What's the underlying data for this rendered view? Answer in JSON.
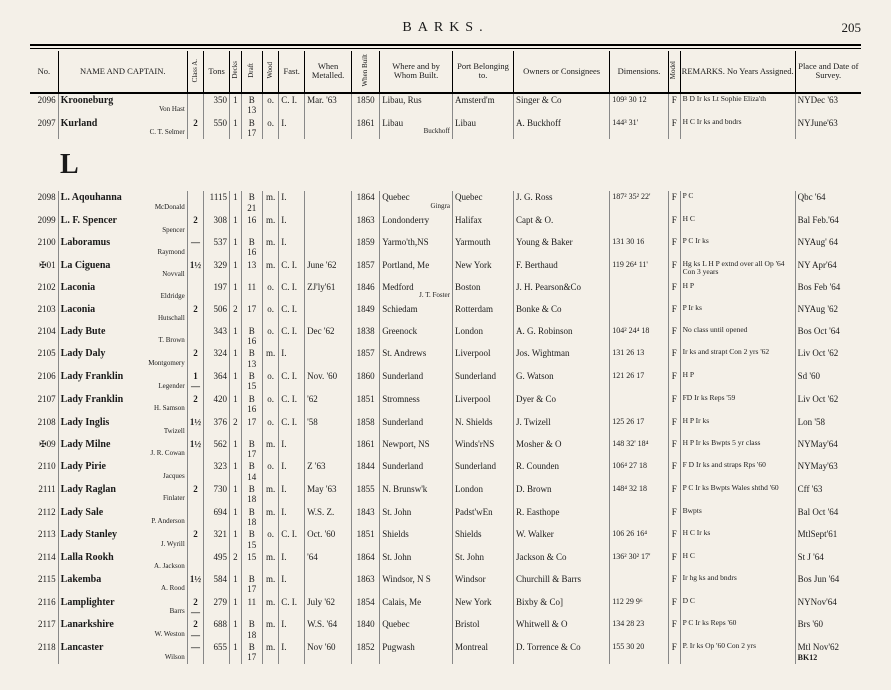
{
  "header": {
    "title": "BARKS.",
    "page_number": "205"
  },
  "columns": [
    "No.",
    "NAME AND CAPTAIN.",
    "Class A.",
    "Tons",
    "Decks",
    "Draft",
    "Wood",
    "Fast.",
    "When Metalled.",
    "When Built",
    "Where and by Whom Built.",
    "Port Belonging to.",
    "Owners or Consignees",
    "Dimensions.",
    "Model",
    "REMARKS. No Years Assigned.",
    "Place and Date of Survey."
  ],
  "section_letter": "L",
  "rows": [
    {
      "no": "2096",
      "name": "Krooneburg",
      "sub": "Von Hast",
      "class": "",
      "tons": "350",
      "decks": "1",
      "draft": "B 13",
      "wood": "o.",
      "fast": "C. I.",
      "metal": "Mar. '63",
      "built": "1850",
      "where": "Libau, Rus",
      "port": "Amsterd'm",
      "owner": "Singer & Co",
      "dim": "109³ 30 12",
      "model": "F",
      "remk": "B D Ir ks Lt Sophie Eliza'th",
      "place": "NYDec '63"
    },
    {
      "no": "2097",
      "name": "Kurland",
      "sub": "C. T. Selmer",
      "class": "2",
      "tons": "550",
      "decks": "1",
      "draft": "B 17",
      "wood": "o.",
      "fast": "I.",
      "metal": "",
      "built": "1861",
      "where": "Libau",
      "where2": "Buckhoff",
      "port": "Libau",
      "owner": "A. Buckhoff",
      "dim": "144³ 31'",
      "model": "F",
      "remk": "H C  Ir ks and bndrs",
      "place": "NYJune'63"
    },
    {
      "no": "2098",
      "name": "L. Aqouhanna",
      "sub": "McDonald",
      "class": "",
      "tons": "1115",
      "decks": "1",
      "draft": "B 21",
      "wood": "m.",
      "fast": "I.",
      "metal": "",
      "built": "1864",
      "where": "Quebec",
      "where2": "Gingra",
      "port": "Quebec",
      "owner": "J. G. Ross",
      "dim": "187² 35² 22'",
      "model": "F",
      "remk": "P C",
      "place": "Qbc    '64"
    },
    {
      "no": "2099",
      "name": "L. F. Spencer",
      "sub": "Spencer",
      "class": "2",
      "tons": "308",
      "decks": "1",
      "draft": "16",
      "wood": "m.",
      "fast": "I.",
      "metal": "",
      "built": "1863",
      "where": "Londonderry",
      "port": "Halifax",
      "owner": "Capt & O.",
      "dim": "",
      "model": "F",
      "remk": "H C",
      "place": "Bal Feb.'64"
    },
    {
      "no": "2100",
      "name": "Laboramus",
      "sub": "Raymond",
      "class": "—",
      "tons": "537",
      "decks": "1",
      "draft": "B 16",
      "wood": "m.",
      "fast": "I.",
      "metal": "",
      "built": "1859",
      "where": "Yarmo'th,NS",
      "port": "Yarmouth",
      "owner": "Young & Baker",
      "dim": "131 30 16",
      "model": "F",
      "remk": "P C  Ir ks",
      "place": "NYAug' 64"
    },
    {
      "no": "✠01",
      "name": "La Ciguena",
      "sub": "Novvall",
      "class": "1½",
      "tons": "329",
      "decks": "1",
      "draft": "13",
      "wood": "m.",
      "fast": "C. I.",
      "metal": "June '62",
      "built": "1857",
      "where": "Portland, Me",
      "port": "New York",
      "owner": "F. Berthaud",
      "dim": "119 26⁴ 11'",
      "model": "F",
      "remk": "Hg ks L H P extnd over all Op '64  Con 3 years",
      "place": "NY Apr'64"
    },
    {
      "no": "2102",
      "name": "Laconia",
      "sub": "Eldridge",
      "class": "",
      "tons": "197",
      "decks": "1",
      "draft": "11",
      "wood": "o.",
      "fast": "C. I.",
      "metal": "ZJ'ly'61",
      "built": "1846",
      "where": "Medford",
      "where2": "J. T. Foster",
      "port": "Boston",
      "owner": "J. H. Pearson&Co",
      "dim": "",
      "model": "F",
      "remk": "H P",
      "place": "Bos Feb '64"
    },
    {
      "no": "2103",
      "name": "Laconia",
      "sub": "Hutschall",
      "class": "2",
      "tons": "506",
      "decks": "2",
      "draft": "17",
      "wood": "o.",
      "fast": "C. I.",
      "metal": "",
      "built": "1849",
      "where": "Schiedam",
      "port": "Rotterdam",
      "owner": "Bonke & Co",
      "dim": "",
      "model": "F",
      "remk": "P  Ir ks",
      "place": "NYAug '62"
    },
    {
      "no": "2104",
      "name": "Lady Bute",
      "sub": "T. Brown",
      "class": "",
      "tons": "343",
      "decks": "1",
      "draft": "B 16",
      "wood": "o.",
      "fast": "C. I.",
      "metal": "Dec '62",
      "built": "1838",
      "where": "Greenock",
      "port": "London",
      "owner": "A. G. Robinson",
      "dim": "104² 24⁴ 18",
      "model": "F",
      "remk": "No class until opened",
      "place": "Bos Oct '64"
    },
    {
      "no": "2105",
      "name": "Lady Daly",
      "sub": "Montgomery",
      "class": "2",
      "tons": "324",
      "decks": "1",
      "draft": "B 13",
      "wood": "m.",
      "fast": "I.",
      "metal": "",
      "built": "1857",
      "where": "St. Andrews",
      "port": "Liverpool",
      "owner": "Jos. Wightman",
      "dim": "131 26 13",
      "model": "F",
      "remk": "Ir ks and strapt Con 2 yrs '62",
      "place": "Liv Oct '62"
    },
    {
      "no": "2106",
      "name": "Lady Franklin",
      "sub": "Legender",
      "class": "1—",
      "tons": "364",
      "decks": "1",
      "draft": "B 15",
      "wood": "o.",
      "fast": "C. I.",
      "metal": "Nov. '60",
      "built": "1860",
      "where": "Sunderland",
      "port": "Sunderland",
      "owner": "G. Watson",
      "dim": "121 26 17",
      "model": "F",
      "remk": "H P",
      "place": "Sd       '60"
    },
    {
      "no": "2107",
      "name": "Lady Franklin",
      "sub": "H. Samson",
      "class": "2",
      "tons": "420",
      "decks": "1",
      "draft": "B 16",
      "wood": "o.",
      "fast": "C. I.",
      "metal": "'62",
      "built": "1851",
      "where": "Stromness",
      "port": "Liverpool",
      "owner": "Dyer & Co",
      "dim": "",
      "model": "F",
      "remk": "FD Ir ks Reps '59",
      "place": "Liv Oct '62"
    },
    {
      "no": "2108",
      "name": "Lady Inglis",
      "sub": "Twizell",
      "class": "1½",
      "tons": "376",
      "decks": "2",
      "draft": "17",
      "wood": "o.",
      "fast": "C. I.",
      "metal": "'58",
      "built": "1858",
      "where": "Sunderland",
      "port": "N. Shields",
      "owner": "J. Twizell",
      "dim": "125 26 17",
      "model": "F",
      "remk": "H P  Ir ks",
      "place": "Lon     '58"
    },
    {
      "no": "✠09",
      "name": "Lady Milne",
      "sub": "J. R. Cowan",
      "class": "1½",
      "tons": "562",
      "decks": "1",
      "draft": "B 17",
      "wood": "m.",
      "fast": "I.",
      "metal": "",
      "built": "1861",
      "where": "Newport, NS",
      "port": "Winds'rNS",
      "owner": "Mosher & O",
      "dim": "148 32' 18⁴",
      "model": "F",
      "remk": "H P  Ir ks Bwpts 5 yr class",
      "place": "NYMay'64"
    },
    {
      "no": "2110",
      "name": "Lady Pirie",
      "sub": "Jacques",
      "class": "",
      "tons": "323",
      "decks": "1",
      "draft": "B 14",
      "wood": "o.",
      "fast": "I.",
      "metal": "Z     '63",
      "built": "1844",
      "where": "Sunderland",
      "port": "Sunderland",
      "owner": "R. Counden",
      "dim": "106⁴ 27 18",
      "model": "F",
      "remk": "F D Ir ks and straps Rps '60",
      "place": "NYMay'63"
    },
    {
      "no": "2111",
      "name": "Lady Raglan",
      "sub": "Finlater",
      "class": "2",
      "tons": "730",
      "decks": "1",
      "draft": "B 18",
      "wood": "m.",
      "fast": "I.",
      "metal": "May '63",
      "built": "1855",
      "where": "N. Brunsw'k",
      "port": "London",
      "owner": "D. Brown",
      "dim": "148⁴ 32 18",
      "model": "F",
      "remk": "P C Ir ks Bwpts Wales shthd '60",
      "place": "Cff      '63"
    },
    {
      "no": "2112",
      "name": "Lady Sale",
      "sub": "P. Anderson",
      "class": "",
      "tons": "694",
      "decks": "1",
      "draft": "B 18",
      "wood": "m.",
      "fast": "I.",
      "metal": "W.S. Z.",
      "built": "1843",
      "where": "St. John",
      "port": "Padst'wEn",
      "owner": "R. Easthope",
      "dim": "",
      "model": "F",
      "remk": "Bwpts",
      "place": "Bal Oct '64"
    },
    {
      "no": "2113",
      "name": "Lady Stanley",
      "sub": "J. Wyrill",
      "class": "2",
      "tons": "321",
      "decks": "1",
      "draft": "B 15",
      "wood": "o.",
      "fast": "C. I.",
      "metal": "Oct. '60",
      "built": "1851",
      "where": "Shields",
      "port": "Shields",
      "owner": "W. Walker",
      "dim": "106 26 16⁴",
      "model": "F",
      "remk": "H C  Ir ks",
      "place": "MtlSept'61"
    },
    {
      "no": "2114",
      "name": "Lalla Rookh",
      "sub": "A. Jackson",
      "class": "",
      "tons": "495",
      "decks": "2",
      "draft": "15",
      "wood": "m.",
      "fast": "I.",
      "metal": "'64",
      "built": "1864",
      "where": "St. John",
      "port": "St. John",
      "owner": "Jackson & Co",
      "dim": "136² 30² 17'",
      "model": "F",
      "remk": "H C",
      "place": "St J     '64"
    },
    {
      "no": "2115",
      "name": "Lakemba",
      "sub": "A. Rood",
      "class": "1½",
      "tons": "584",
      "decks": "1",
      "draft": "B 17",
      "wood": "m.",
      "fast": "I.",
      "metal": "",
      "built": "1863",
      "where": "Windsor, N S",
      "port": "Windsor",
      "owner": "Churchill & Barrs",
      "dim": "",
      "model": "F",
      "remk": "Ir hg ks and bndrs",
      "place": "Bos Jun '64"
    },
    {
      "no": "2116",
      "name": "Lamplighter",
      "sub": "Barrs",
      "class": "2—",
      "tons": "279",
      "decks": "1",
      "draft": "11",
      "wood": "m.",
      "fast": "C. I.",
      "metal": "July '62",
      "built": "1854",
      "where": "Calais, Me",
      "port": "New York",
      "owner": "Bixby & Co]",
      "dim": "112 29  9⁶",
      "model": "F",
      "remk": "D C",
      "place": "NYNov'64"
    },
    {
      "no": "2117",
      "name": "Lanarkshire",
      "sub": "W. Weston",
      "class": "2—",
      "tons": "688",
      "decks": "1",
      "draft": "B 18",
      "wood": "m.",
      "fast": "I.",
      "metal": "W.S. '64",
      "built": "1840",
      "where": "Quebec",
      "port": "Bristol",
      "owner": "Whitwell & O",
      "dim": "134 28 23",
      "model": "F",
      "remk": "P C  Ir ks  Reps '60",
      "place": "Brs      '60"
    },
    {
      "no": "2118",
      "name": "Lancaster",
      "sub": "Wilson",
      "class": "—",
      "tons": "655",
      "decks": "1",
      "draft": "B 17",
      "wood": "m.",
      "fast": "I.",
      "metal": "Nov '60",
      "built": "1852",
      "where": "Pugwash",
      "port": "Montreal",
      "owner": "D. Torrence & Co",
      "dim": "155 30 20",
      "model": "F",
      "remk": "P. Ir ks Op '60  Con 2 yrs",
      "place": "Mtl Nov'62",
      "place2": "BK12"
    }
  ]
}
